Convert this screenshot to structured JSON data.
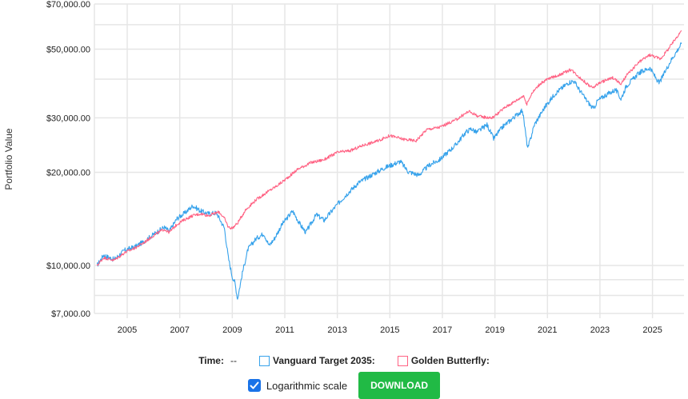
{
  "chart_data": {
    "type": "line",
    "scale": "log",
    "ylabel": "Portfolio Value",
    "ylim": [
      7000,
      70000
    ],
    "xlim": [
      2003.75,
      2026.2
    ],
    "y_ticks": [
      {
        "value": 7000,
        "label": "$7,000.00"
      },
      {
        "value": 10000,
        "label": "$10,000.00"
      },
      {
        "value": 20000,
        "label": "$20,000.00"
      },
      {
        "value": 30000,
        "label": "$30,000.00"
      },
      {
        "value": 50000,
        "label": "$50,000.00"
      },
      {
        "value": 70000,
        "label": "$70,000.00"
      }
    ],
    "y_minor_grid": [
      8000,
      9000,
      40000,
      60000
    ],
    "x_ticks": [
      {
        "value": 2005,
        "label": "2005"
      },
      {
        "value": 2007,
        "label": "2007"
      },
      {
        "value": 2009,
        "label": "2009"
      },
      {
        "value": 2011,
        "label": "2011"
      },
      {
        "value": 2013,
        "label": "2013"
      },
      {
        "value": 2015,
        "label": "2015"
      },
      {
        "value": 2017,
        "label": "2017"
      },
      {
        "value": 2019,
        "label": "2019"
      },
      {
        "value": 2021,
        "label": "2021"
      },
      {
        "value": 2023,
        "label": "2023"
      },
      {
        "value": 2025,
        "label": "2025"
      }
    ],
    "series": [
      {
        "name": "Vanguard Target 2035:",
        "color": "#36a2eb",
        "points": [
          [
            2003.85,
            10000
          ],
          [
            2004.1,
            10800
          ],
          [
            2004.5,
            10450
          ],
          [
            2004.9,
            11200
          ],
          [
            2005.3,
            11500
          ],
          [
            2005.6,
            11900
          ],
          [
            2006.0,
            12600
          ],
          [
            2006.4,
            13300
          ],
          [
            2006.6,
            12900
          ],
          [
            2006.9,
            14200
          ],
          [
            2007.2,
            14800
          ],
          [
            2007.5,
            15600
          ],
          [
            2007.8,
            15000
          ],
          [
            2008.1,
            14700
          ],
          [
            2008.4,
            14800
          ],
          [
            2008.7,
            13200
          ],
          [
            2008.85,
            10600
          ],
          [
            2009.0,
            9200
          ],
          [
            2009.1,
            8800
          ],
          [
            2009.2,
            7800
          ],
          [
            2009.4,
            9600
          ],
          [
            2009.6,
            11300
          ],
          [
            2009.9,
            12200
          ],
          [
            2010.2,
            12700
          ],
          [
            2010.4,
            11600
          ],
          [
            2010.6,
            12200
          ],
          [
            2010.9,
            13600
          ],
          [
            2011.3,
            15000
          ],
          [
            2011.6,
            13500
          ],
          [
            2011.8,
            12800
          ],
          [
            2012.2,
            14600
          ],
          [
            2012.5,
            14000
          ],
          [
            2012.9,
            15400
          ],
          [
            2013.3,
            16800
          ],
          [
            2013.8,
            18500
          ],
          [
            2014.3,
            19600
          ],
          [
            2014.8,
            20700
          ],
          [
            2015.4,
            21700
          ],
          [
            2015.7,
            20100
          ],
          [
            2016.1,
            19600
          ],
          [
            2016.5,
            21100
          ],
          [
            2016.9,
            22000
          ],
          [
            2017.5,
            24500
          ],
          [
            2017.9,
            27000
          ],
          [
            2018.1,
            27700
          ],
          [
            2018.3,
            26900
          ],
          [
            2018.7,
            28500
          ],
          [
            2018.95,
            25700
          ],
          [
            2019.3,
            28100
          ],
          [
            2019.8,
            30500
          ],
          [
            2020.05,
            31800
          ],
          [
            2020.2,
            25500
          ],
          [
            2020.25,
            23800
          ],
          [
            2020.5,
            28500
          ],
          [
            2020.9,
            32500
          ],
          [
            2021.3,
            36000
          ],
          [
            2021.8,
            39000
          ],
          [
            2022.0,
            39500
          ],
          [
            2022.4,
            35000
          ],
          [
            2022.75,
            32000
          ],
          [
            2022.9,
            34000
          ],
          [
            2023.2,
            35500
          ],
          [
            2023.6,
            37000
          ],
          [
            2023.8,
            34500
          ],
          [
            2024.0,
            38000
          ],
          [
            2024.5,
            42000
          ],
          [
            2024.9,
            43500
          ],
          [
            2025.25,
            38800
          ],
          [
            2025.4,
            41000
          ],
          [
            2025.7,
            46000
          ],
          [
            2026.1,
            52000
          ]
        ]
      },
      {
        "name": "Golden Butterfly:",
        "color": "#ff6384",
        "points": [
          [
            2003.85,
            10000
          ],
          [
            2004.1,
            10600
          ],
          [
            2004.5,
            10400
          ],
          [
            2004.9,
            11000
          ],
          [
            2005.3,
            11400
          ],
          [
            2005.6,
            11800
          ],
          [
            2006.0,
            12500
          ],
          [
            2006.4,
            13100
          ],
          [
            2006.6,
            12800
          ],
          [
            2006.9,
            13600
          ],
          [
            2007.2,
            14100
          ],
          [
            2007.5,
            14500
          ],
          [
            2007.8,
            14700
          ],
          [
            2008.1,
            14500
          ],
          [
            2008.5,
            14900
          ],
          [
            2008.7,
            14200
          ],
          [
            2008.85,
            13300
          ],
          [
            2009.0,
            13200
          ],
          [
            2009.2,
            13700
          ],
          [
            2009.5,
            15100
          ],
          [
            2009.9,
            16300
          ],
          [
            2010.3,
            17200
          ],
          [
            2010.7,
            18100
          ],
          [
            2011.0,
            18900
          ],
          [
            2011.5,
            20500
          ],
          [
            2012.0,
            21500
          ],
          [
            2012.5,
            22000
          ],
          [
            2013.0,
            23200
          ],
          [
            2013.5,
            23500
          ],
          [
            2014.0,
            24500
          ],
          [
            2014.5,
            25200
          ],
          [
            2015.0,
            26300
          ],
          [
            2015.5,
            25600
          ],
          [
            2016.0,
            25300
          ],
          [
            2016.4,
            27500
          ],
          [
            2016.9,
            28000
          ],
          [
            2017.5,
            29500
          ],
          [
            2018.0,
            31500
          ],
          [
            2018.4,
            30300
          ],
          [
            2018.9,
            30000
          ],
          [
            2019.4,
            32500
          ],
          [
            2019.9,
            34500
          ],
          [
            2020.1,
            35500
          ],
          [
            2020.2,
            33000
          ],
          [
            2020.4,
            36000
          ],
          [
            2020.7,
            38500
          ],
          [
            2021.0,
            40000
          ],
          [
            2021.5,
            41500
          ],
          [
            2021.9,
            43000
          ],
          [
            2022.3,
            40000
          ],
          [
            2022.7,
            37500
          ],
          [
            2023.0,
            39000
          ],
          [
            2023.5,
            40500
          ],
          [
            2023.8,
            38500
          ],
          [
            2024.0,
            41000
          ],
          [
            2024.5,
            45500
          ],
          [
            2024.9,
            48000
          ],
          [
            2025.3,
            46500
          ],
          [
            2025.6,
            50000
          ],
          [
            2026.1,
            57500
          ]
        ]
      }
    ]
  },
  "legend": {
    "time_label": "Time:",
    "time_value": "--",
    "series1_label": "Vanguard Target 2035:",
    "series2_label": "Golden Butterfly:"
  },
  "controls": {
    "log_scale_label": "Logarithmic scale",
    "log_scale_checked": true,
    "download_label": "DOWNLOAD"
  },
  "colors": {
    "series1": "#36a2eb",
    "series2": "#ff6384",
    "grid": "#e6e6e6",
    "download_bg": "#21ba45",
    "checkbox_bg": "#1a73e8"
  }
}
